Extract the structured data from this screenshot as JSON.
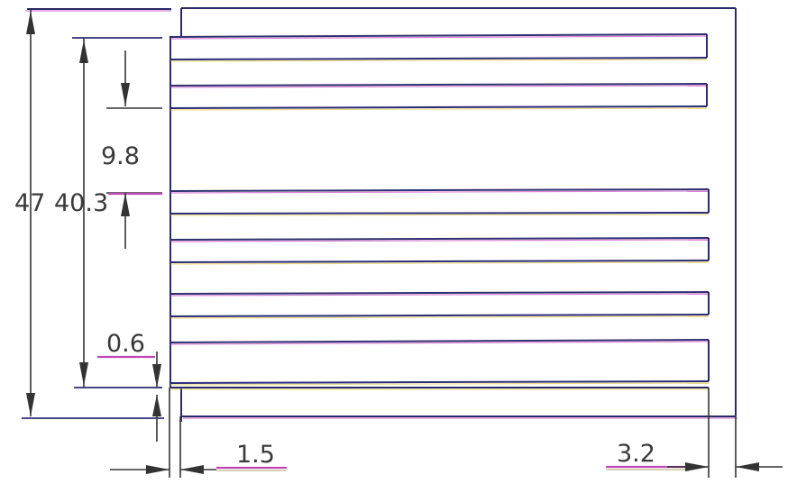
{
  "drawing": {
    "dimensions": {
      "overall_height": "47",
      "slot_span": "40.3",
      "slot_pitch": "9.8",
      "bottom_gap": "0.6",
      "left_margin": "1.5",
      "right_margin": "3.2"
    },
    "colors": {
      "outline": "#2a2a6a",
      "tint_magenta": "#c040c0",
      "tint_yellow": "#d8c020",
      "dimension_text": "#3a3a3a"
    }
  }
}
